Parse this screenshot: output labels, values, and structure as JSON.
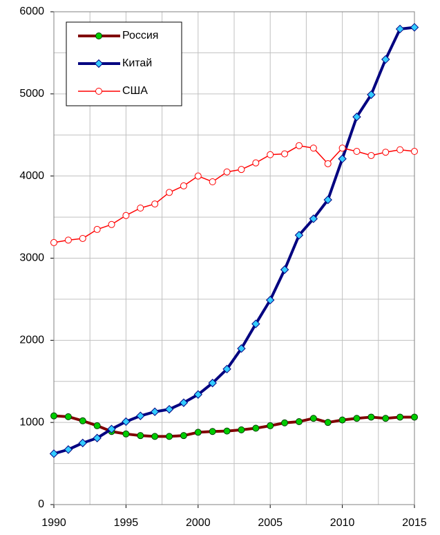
{
  "chart_data": {
    "type": "line",
    "x": [
      1990,
      1991,
      1992,
      1993,
      1994,
      1995,
      1996,
      1997,
      1998,
      1999,
      2000,
      2001,
      2002,
      2003,
      2004,
      2005,
      2006,
      2007,
      2008,
      2009,
      2010,
      2011,
      2012,
      2013,
      2014,
      2015
    ],
    "series": [
      {
        "name": "Россия",
        "color": "#800000",
        "marker": "circle",
        "marker_color": "#00cc00",
        "values": [
          1080,
          1070,
          1020,
          960,
          890,
          860,
          840,
          830,
          830,
          840,
          880,
          890,
          895,
          910,
          930,
          960,
          995,
          1010,
          1050,
          1000,
          1030,
          1050,
          1065,
          1050,
          1065,
          1065
        ]
      },
      {
        "name": "Китай",
        "color": "#000080",
        "marker": "diamond",
        "marker_color": "#33ccff",
        "values": [
          620,
          670,
          750,
          810,
          920,
          1010,
          1080,
          1130,
          1160,
          1240,
          1340,
          1480,
          1650,
          1900,
          2200,
          2490,
          2860,
          3280,
          3480,
          3710,
          4210,
          4720,
          4990,
          5420,
          5790,
          5810
        ]
      },
      {
        "name": "США",
        "color": "#ff0000",
        "marker": "circle",
        "marker_color": "#ffffff",
        "values": [
          3190,
          3220,
          3240,
          3350,
          3410,
          3520,
          3610,
          3660,
          3800,
          3880,
          4000,
          3930,
          4050,
          4080,
          4160,
          4260,
          4270,
          4370,
          4340,
          4150,
          4340,
          4300,
          4250,
          4290,
          4320,
          4300
        ]
      }
    ],
    "xlim": [
      1990,
      2015
    ],
    "xticks": [
      1990,
      1995,
      2000,
      2005,
      2010,
      2015
    ],
    "ylim": [
      0,
      6000
    ],
    "yticks": [
      0,
      1000,
      2000,
      3000,
      4000,
      5000,
      6000
    ],
    "grid": true,
    "legend": "upper left"
  }
}
